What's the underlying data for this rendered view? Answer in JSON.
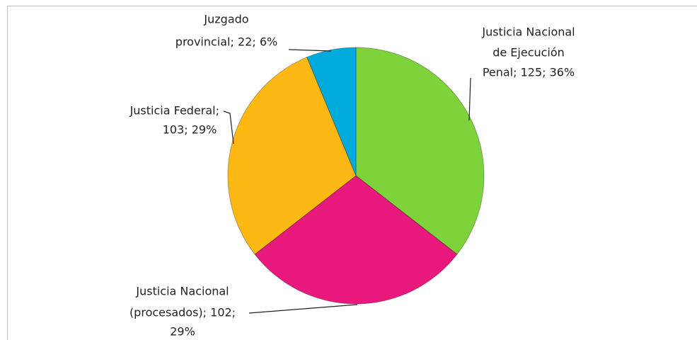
{
  "chart_data": {
    "type": "pie",
    "categories": [
      "Justicia Nacional de Ejecución Penal",
      "Justicia Nacional (procesados)",
      "Justicia Federal",
      "Juzgado provincial"
    ],
    "values": [
      125,
      102,
      103,
      22
    ],
    "value_labels": [
      [
        "Justicia Nacional",
        "de Ejecución",
        "Penal; 125; 36%"
      ],
      [
        "Justicia Nacional",
        "(procesados); 102;",
        "29%"
      ],
      [
        "Justicia Federal;",
        "103; 29%"
      ],
      [
        "Juzgado",
        "provincial; 22; 6%"
      ]
    ],
    "colors": [
      "#7ed33b",
      "#e8187c",
      "#fdb813",
      "#00abdc"
    ]
  }
}
